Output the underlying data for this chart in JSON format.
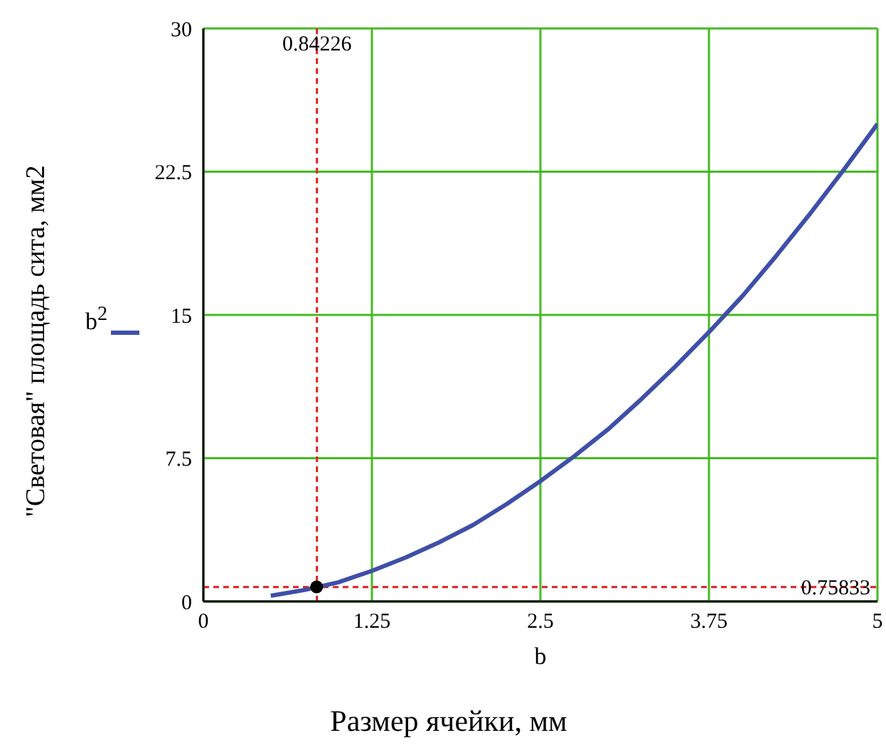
{
  "chart_data": {
    "type": "line",
    "xlabel": "b",
    "ylabel": "\"Световая\" площадь сита, мм2",
    "annotations": [
      "Размер ячейки, мм"
    ],
    "xlim": [
      0,
      5
    ],
    "xticks": [
      0,
      1.25,
      2.5,
      3.75,
      5
    ],
    "ylim": [
      0,
      30
    ],
    "yticks": [
      0,
      7.5,
      15,
      22.5,
      30
    ],
    "grid": true,
    "legend": "left",
    "line_style": "solid",
    "series": [
      {
        "name": "b$^{2}$",
        "color": "#3f4fa8",
        "x": [
          0.5,
          0.75,
          1,
          1.25,
          1.5,
          1.75,
          2,
          2.25,
          2.5,
          2.75,
          3,
          3.25,
          3.5,
          3.75,
          4,
          4.25,
          4.5,
          4.75,
          5
        ],
        "values": [
          0.3,
          0.6,
          1,
          1.6,
          2.3,
          3.1,
          4,
          5.1,
          6.3,
          7.6,
          9,
          10.6,
          12.3,
          14.1,
          16,
          18.1,
          20.3,
          22.6,
          25
        ]
      },
      {
        "type": "scatter",
        "color": "#000000",
        "x": [
          0.84
        ],
        "values": [
          0.76
        ]
      }
    ],
    "ref_lines": [
      {
        "axis": "x",
        "value": 0.84226,
        "label": "0.84226",
        "color": "#e02020",
        "line_style": "dashed"
      },
      {
        "axis": "y",
        "value": 0.75833,
        "label": "0.75833",
        "color": "#e02020",
        "line_style": "dashed"
      }
    ]
  }
}
